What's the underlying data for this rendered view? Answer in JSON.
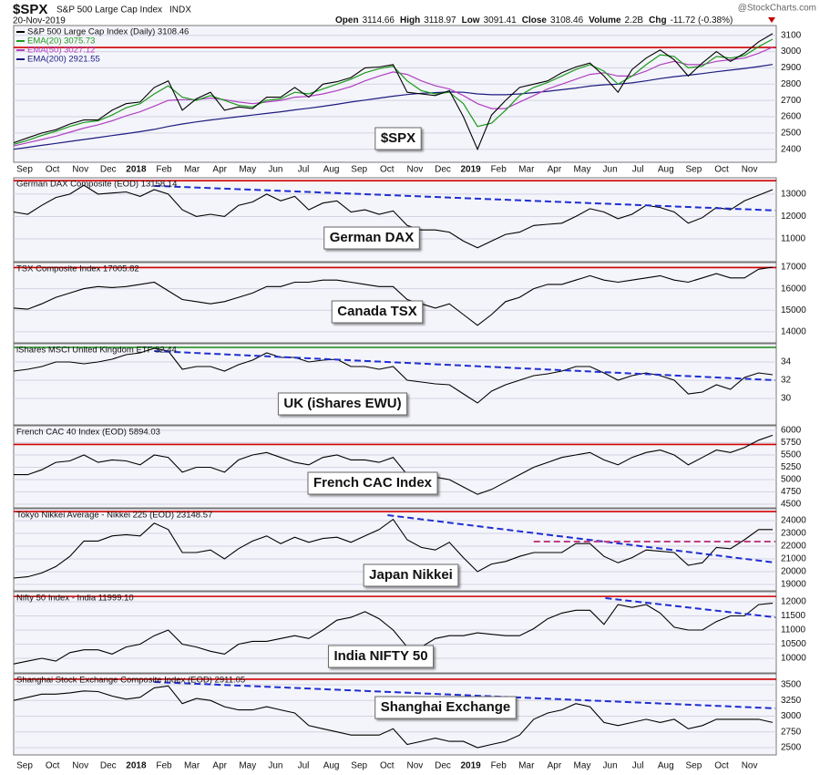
{
  "header": {
    "symbol": "$SPX",
    "name": "S&P 500 Large Cap Index",
    "exchange": "INDX",
    "date": "20-Nov-2019",
    "quote": [
      {
        "label": "Open",
        "value": "3114.66"
      },
      {
        "label": "High",
        "value": "3118.97"
      },
      {
        "label": "Low",
        "value": "3091.41"
      },
      {
        "label": "Close",
        "value": "3108.46"
      },
      {
        "label": "Volume",
        "value": "2.2B"
      },
      {
        "label": "Chg",
        "value": "-11.72 (-0.38%)"
      }
    ],
    "source": "@StockCharts.com"
  },
  "x_labels": [
    "Sep",
    "Oct",
    "Nov",
    "Dec",
    "2018",
    "Feb",
    "Mar",
    "Apr",
    "May",
    "Jun",
    "Jul",
    "Aug",
    "Sep",
    "Oct",
    "Nov",
    "Dec",
    "2019",
    "Feb",
    "Mar",
    "Apr",
    "May",
    "Jun",
    "Jul",
    "Aug",
    "Sep",
    "Oct",
    "Nov"
  ],
  "chart_data": [
    {
      "type": "line",
      "label": "$SPX",
      "ylim": [
        2320,
        3160
      ],
      "yticks": [
        2400,
        2500,
        2600,
        2700,
        2800,
        2900,
        3000,
        3100
      ],
      "hlines": [
        {
          "value": 3025,
          "color": "#d00000"
        }
      ],
      "trend_lines": [],
      "series": [
        {
          "name": "S&P 500 Large Cap Index (Daily) 3108.46",
          "color": "#000000",
          "values": [
            2440,
            2470,
            2500,
            2520,
            2555,
            2580,
            2580,
            2640,
            2680,
            2690,
            2780,
            2820,
            2640,
            2710,
            2750,
            2640,
            2660,
            2650,
            2720,
            2720,
            2780,
            2720,
            2800,
            2815,
            2840,
            2900,
            2905,
            2920,
            2750,
            2740,
            2730,
            2760,
            2600,
            2400,
            2610,
            2700,
            2780,
            2800,
            2820,
            2870,
            2905,
            2930,
            2850,
            2750,
            2890,
            2960,
            3010,
            2950,
            2850,
            2930,
            3000,
            2940,
            2990,
            3060,
            3110
          ]
        },
        {
          "name": "EMA(20) 3075.73",
          "color": "#1a9a1a",
          "values": [
            2430,
            2455,
            2485,
            2510,
            2540,
            2565,
            2575,
            2610,
            2655,
            2680,
            2740,
            2790,
            2720,
            2700,
            2730,
            2700,
            2670,
            2660,
            2700,
            2710,
            2750,
            2740,
            2770,
            2800,
            2830,
            2870,
            2895,
            2910,
            2820,
            2760,
            2740,
            2750,
            2680,
            2540,
            2560,
            2640,
            2730,
            2780,
            2810,
            2850,
            2890,
            2920,
            2880,
            2800,
            2850,
            2920,
            2980,
            2970,
            2900,
            2910,
            2970,
            2960,
            2975,
            3030,
            3076
          ]
        },
        {
          "name": "EMA(50) 3027.12",
          "color": "#b040c0",
          "values": [
            2420,
            2440,
            2460,
            2480,
            2505,
            2530,
            2550,
            2575,
            2605,
            2630,
            2665,
            2700,
            2705,
            2705,
            2715,
            2705,
            2690,
            2680,
            2690,
            2700,
            2720,
            2725,
            2740,
            2760,
            2785,
            2820,
            2850,
            2875,
            2860,
            2820,
            2790,
            2770,
            2730,
            2680,
            2650,
            2650,
            2690,
            2730,
            2770,
            2800,
            2830,
            2860,
            2870,
            2850,
            2850,
            2880,
            2920,
            2940,
            2920,
            2920,
            2940,
            2950,
            2960,
            2990,
            3027
          ]
        },
        {
          "name": "EMA(200) 2921.55",
          "color": "#1c1c80",
          "values": [
            2400,
            2412,
            2424,
            2436,
            2448,
            2460,
            2472,
            2484,
            2496,
            2508,
            2522,
            2540,
            2555,
            2568,
            2580,
            2590,
            2600,
            2610,
            2620,
            2630,
            2642,
            2652,
            2664,
            2676,
            2690,
            2702,
            2714,
            2726,
            2736,
            2744,
            2748,
            2752,
            2750,
            2740,
            2735,
            2735,
            2740,
            2748,
            2756,
            2766,
            2776,
            2788,
            2796,
            2800,
            2808,
            2820,
            2834,
            2846,
            2855,
            2865,
            2876,
            2886,
            2896,
            2908,
            2921
          ]
        }
      ]
    },
    {
      "type": "line",
      "label": "German DAX",
      "ylim": [
        9980,
        13730
      ],
      "yticks": [
        11000,
        12000,
        13000
      ],
      "hlines": [
        {
          "value": 13600,
          "color": "#d00000"
        }
      ],
      "trend_lines": [
        {
          "from": [
            10,
            13370
          ],
          "to": [
            54.2,
            12270
          ],
          "color": "#1f2fd0"
        }
      ],
      "series": [
        {
          "name": "German DAX Composite (EOD) 13158.14",
          "color": "#000000",
          "values": [
            12200,
            12100,
            12500,
            12850,
            13000,
            13400,
            13000,
            13050,
            13100,
            12900,
            13200,
            13000,
            12300,
            12000,
            12100,
            12000,
            12500,
            12650,
            13000,
            12700,
            12900,
            12300,
            12600,
            12700,
            12200,
            12300,
            12100,
            12250,
            11600,
            11400,
            11400,
            11300,
            10900,
            10600,
            10900,
            11200,
            11300,
            11600,
            11650,
            11700,
            12000,
            12350,
            12200,
            11900,
            12100,
            12500,
            12400,
            12200,
            11700,
            11950,
            12400,
            12300,
            12700,
            12950,
            13200
          ]
        }
      ]
    },
    {
      "type": "line",
      "label": "Canada TSX",
      "ylim": [
        13490,
        17210
      ],
      "yticks": [
        14000,
        15000,
        16000,
        17000
      ],
      "hlines": [
        {
          "value": 16980,
          "color": "#d00000"
        }
      ],
      "trend_lines": [],
      "series": [
        {
          "name": "TSX Composite Index 17005.82",
          "color": "#000000",
          "values": [
            15100,
            15050,
            15300,
            15600,
            15800,
            16000,
            16100,
            16050,
            16100,
            16200,
            16300,
            15900,
            15500,
            15400,
            15300,
            15400,
            15600,
            15800,
            16100,
            16100,
            16300,
            16300,
            16400,
            16400,
            16300,
            16200,
            16100,
            16100,
            15500,
            15300,
            15100,
            15300,
            14800,
            14300,
            14800,
            15400,
            15600,
            16000,
            16200,
            16200,
            16400,
            16600,
            16400,
            16300,
            16400,
            16500,
            16600,
            16400,
            16300,
            16500,
            16700,
            16500,
            16500,
            16900,
            17000
          ]
        }
      ]
    },
    {
      "type": "line",
      "label": "UK (iShares EWU)",
      "ylim": [
        27.1,
        36
      ],
      "yticks": [
        30,
        32,
        34
      ],
      "hlines": [
        {
          "value": 35.6,
          "color": "#1a8a1a"
        }
      ],
      "trend_lines": [
        {
          "from": [
            10,
            35.2
          ],
          "to": [
            54.2,
            32
          ]
        },
        {
          "color": "#1f2fd0"
        }
      ],
      "series": [
        {
          "name": "iShares MSCI United Kingdom ETF 32.44",
          "color": "#000000",
          "values": [
            33.0,
            33.2,
            33.5,
            34.0,
            34.0,
            33.8,
            34.0,
            34.3,
            34.8,
            35.0,
            35.5,
            35.2,
            33.2,
            33.5,
            33.5,
            33.0,
            33.7,
            34.2,
            35.0,
            34.5,
            34.5,
            34.0,
            34.2,
            34.3,
            33.5,
            33.5,
            33.2,
            33.5,
            32.0,
            31.8,
            31.6,
            31.5,
            30.5,
            29.5,
            30.8,
            31.5,
            32.0,
            32.5,
            32.7,
            33.0,
            33.5,
            33.5,
            32.8,
            32.0,
            32.5,
            32.8,
            32.5,
            32.0,
            30.5,
            30.7,
            31.5,
            31.0,
            32.3,
            32.8,
            32.6
          ]
        }
      ]
    },
    {
      "type": "line",
      "label": "French CAC Index",
      "ylim": [
        4426,
        6093
      ],
      "yticks": [
        4500,
        4750,
        5000,
        5250,
        5500,
        5750,
        6000
      ],
      "hlines": [
        {
          "value": 5715,
          "color": "#d00000"
        }
      ],
      "trend_lines": [],
      "series": [
        {
          "name": "French CAC 40 Index (EOD) 5894.03",
          "color": "#000000",
          "values": [
            5100,
            5100,
            5200,
            5350,
            5380,
            5500,
            5350,
            5400,
            5380,
            5300,
            5500,
            5450,
            5150,
            5250,
            5250,
            5150,
            5400,
            5500,
            5550,
            5450,
            5350,
            5300,
            5450,
            5500,
            5400,
            5400,
            5350,
            5450,
            5100,
            5100,
            5050,
            5000,
            4850,
            4700,
            4800,
            4950,
            5100,
            5250,
            5350,
            5450,
            5500,
            5550,
            5400,
            5300,
            5450,
            5550,
            5600,
            5500,
            5300,
            5450,
            5600,
            5550,
            5650,
            5800,
            5900
          ]
        }
      ]
    },
    {
      "type": "line",
      "label": "Japan Nikkei",
      "ylim": [
        18500,
        24930
      ],
      "yticks": [
        19000,
        20000,
        21000,
        22000,
        23000,
        24000
      ],
      "hlines": [
        {
          "value": 24710,
          "color": "#d00000"
        }
      ],
      "trend_lines": [
        {
          "from": [
            26.6,
            24430
          ],
          "to": [
            54.2,
            20710
          ],
          "color": "#1f2fd0"
        },
        {
          "from": [
            37,
            22360
          ],
          "to": [
            54.2,
            22360
          ],
          "color": "#c04080"
        }
      ],
      "series": [
        {
          "name": "Tokyo Nikkei Average - Nikkei 225 (EOD) 23148.57",
          "color": "#000000",
          "values": [
            19500,
            19600,
            19900,
            20400,
            21200,
            22400,
            22400,
            22800,
            22900,
            22800,
            23800,
            23300,
            21500,
            21500,
            21700,
            21000,
            21800,
            22400,
            22800,
            22200,
            22700,
            22300,
            22600,
            22700,
            22300,
            22800,
            23300,
            24100,
            22500,
            21900,
            21700,
            22300,
            21100,
            20000,
            20600,
            20800,
            21200,
            21500,
            21500,
            21500,
            22200,
            22200,
            21200,
            20700,
            21100,
            21700,
            21600,
            21500,
            20500,
            20700,
            21900,
            21800,
            22500,
            23300,
            23300
          ]
        }
      ]
    },
    {
      "type": "line",
      "label": "India NIFTY 50",
      "ylim": [
        9485,
        12355
      ],
      "yticks": [
        10000,
        10500,
        11000,
        11500,
        12000
      ],
      "hlines": [
        {
          "value": 12190,
          "color": "#d00000"
        }
      ],
      "trend_lines": [
        {
          "from": [
            42.1,
            12130
          ],
          "to": [
            54.2,
            11450
          ],
          "color": "#1f2fd0"
        }
      ],
      "series": [
        {
          "name": "Nifty 50 Index - India 11999.10",
          "color": "#000000",
          "values": [
            9800,
            9900,
            10000,
            9900,
            10200,
            10300,
            10300,
            10150,
            10400,
            10500,
            10800,
            11000,
            10500,
            10400,
            10250,
            10150,
            10500,
            10600,
            10600,
            10700,
            10800,
            10700,
            11000,
            11350,
            11450,
            11650,
            11400,
            11000,
            10400,
            10400,
            10700,
            10800,
            10800,
            10900,
            10850,
            10800,
            10800,
            11050,
            11400,
            11600,
            11700,
            11700,
            11200,
            11900,
            11800,
            11900,
            11600,
            11100,
            11000,
            11000,
            11300,
            11500,
            11500,
            11900,
            11950
          ]
        }
      ]
    },
    {
      "type": "line",
      "label": "Shanghai Exchange",
      "ylim": [
        2384,
        3673
      ],
      "yticks": [
        2500,
        2750,
        3000,
        3250,
        3500
      ],
      "hlines": [
        {
          "value": 3587,
          "color": "#d00000"
        }
      ],
      "trend_lines": [
        {
          "from": [
            10,
            3543
          ],
          "to": [
            54.2,
            3124
          ],
          "color": "#1f2fd0"
        }
      ],
      "series": [
        {
          "name": "Shanghai Stock Exchange Composite Index (EOD) 2911.05",
          "color": "#000000",
          "values": [
            3250,
            3300,
            3350,
            3350,
            3370,
            3400,
            3390,
            3320,
            3270,
            3300,
            3450,
            3480,
            3200,
            3280,
            3250,
            3150,
            3100,
            3100,
            3150,
            3100,
            3050,
            2850,
            2800,
            2750,
            2700,
            2700,
            2700,
            2800,
            2550,
            2600,
            2650,
            2600,
            2600,
            2500,
            2550,
            2600,
            2700,
            2950,
            3050,
            3100,
            3200,
            3150,
            2900,
            2850,
            2900,
            2950,
            2900,
            2950,
            2800,
            2850,
            2950,
            2950,
            2950,
            2950,
            2900
          ]
        }
      ]
    }
  ]
}
